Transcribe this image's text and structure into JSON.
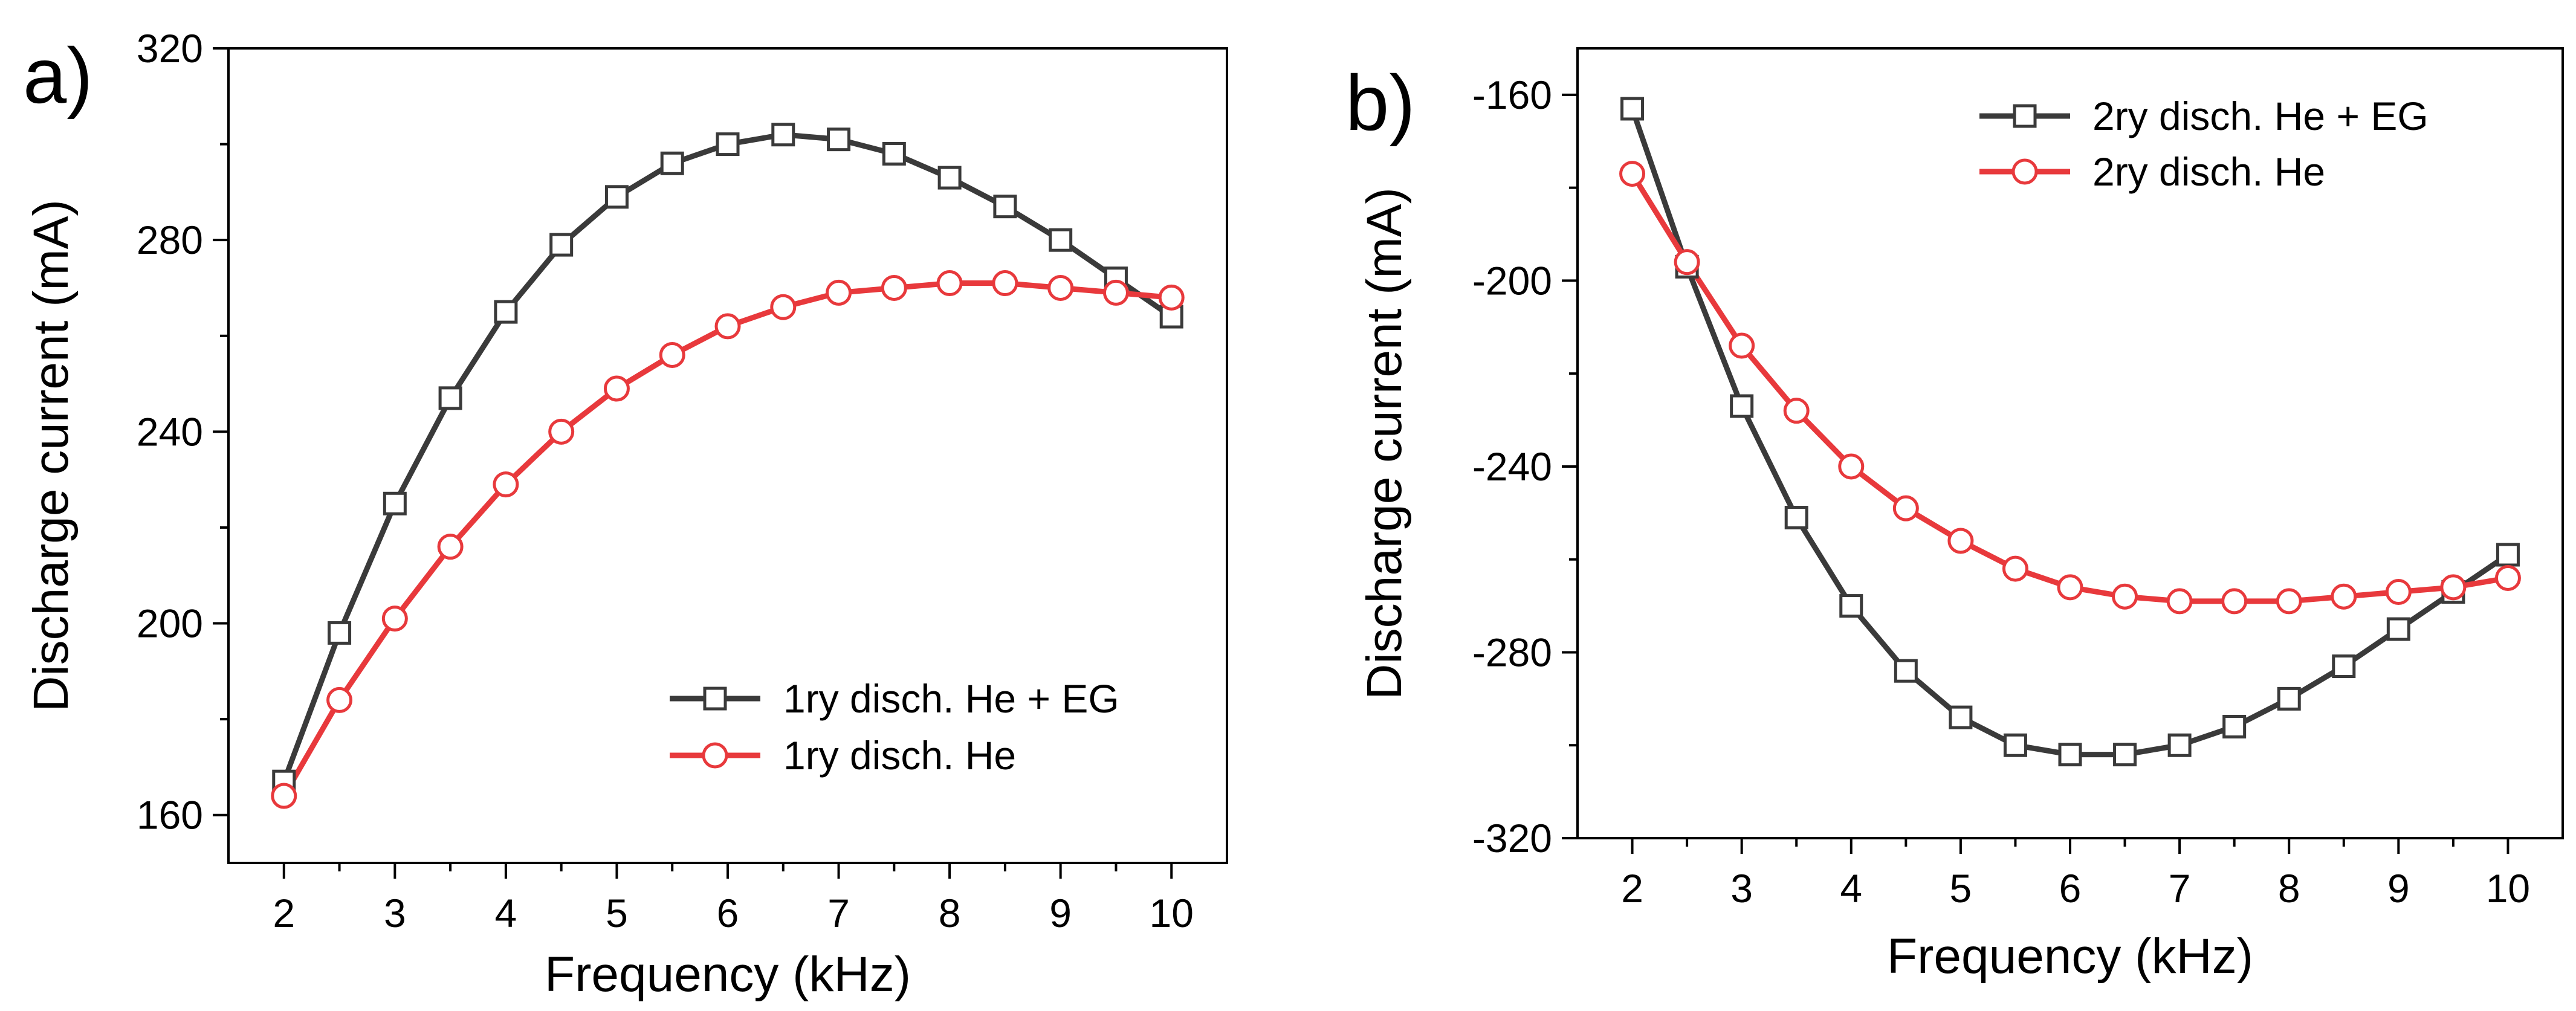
{
  "chart_data": [
    {
      "panel_label": "a)",
      "type": "line",
      "xlabel": "Frequency (kHz)",
      "ylabel": "Discharge current (mA)",
      "xlim": [
        1.5,
        10.5
      ],
      "ylim": [
        150,
        320
      ],
      "xticks": [
        2,
        3,
        4,
        5,
        6,
        7,
        8,
        9,
        10
      ],
      "yticks": [
        160,
        200,
        240,
        280,
        320
      ],
      "legend_position": "bottom-right",
      "x": [
        2,
        2.5,
        3,
        3.5,
        4,
        4.5,
        5,
        5.5,
        6,
        6.5,
        7,
        7.5,
        8,
        8.5,
        9,
        9.5,
        10
      ],
      "series": [
        {
          "name": "1ry disch. He + EG",
          "marker": "square",
          "color": "#3a3a3a",
          "values": [
            167,
            198,
            225,
            247,
            265,
            279,
            289,
            296,
            300,
            302,
            301,
            298,
            293,
            287,
            280,
            272,
            264
          ]
        },
        {
          "name": "1ry disch. He",
          "marker": "circle",
          "color": "#e8393c",
          "values": [
            164,
            184,
            201,
            216,
            229,
            240,
            249,
            256,
            262,
            266,
            269,
            270,
            271,
            271,
            270,
            269,
            268
          ]
        }
      ]
    },
    {
      "panel_label": "b)",
      "type": "line",
      "xlabel": "Frequency (kHz)",
      "ylabel": "Discharge current (mA)",
      "xlim": [
        1.5,
        10.5
      ],
      "ylim": [
        -320,
        -150
      ],
      "xticks": [
        2,
        3,
        4,
        5,
        6,
        7,
        8,
        9,
        10
      ],
      "yticks": [
        -320,
        -280,
        -240,
        -200,
        -160
      ],
      "legend_position": "top-right",
      "x": [
        2,
        2.5,
        3,
        3.5,
        4,
        4.5,
        5,
        5.5,
        6,
        6.5,
        7,
        7.5,
        8,
        8.5,
        9,
        9.5,
        10
      ],
      "series": [
        {
          "name": "2ry disch. He + EG",
          "marker": "square",
          "color": "#3a3a3a",
          "values": [
            -163,
            -197,
            -227,
            -251,
            -270,
            -284,
            -294,
            -300,
            -302,
            -302,
            -300,
            -296,
            -290,
            -283,
            -275,
            -267,
            -259
          ]
        },
        {
          "name": "2ry disch. He",
          "marker": "circle",
          "color": "#e8393c",
          "values": [
            -177,
            -196,
            -214,
            -228,
            -240,
            -249,
            -256,
            -262,
            -266,
            -268,
            -269,
            -269,
            -269,
            -268,
            -267,
            -266,
            -264
          ]
        }
      ]
    }
  ]
}
